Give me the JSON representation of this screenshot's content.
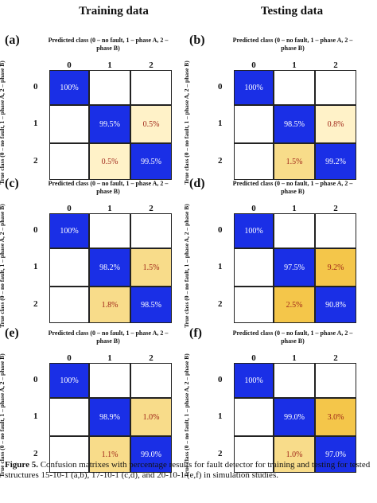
{
  "column_titles": {
    "left": "Training data",
    "right": "Testing data"
  },
  "pred_label": "Predicted class (0 – no fault, 1 – phase A, 2 – phase B)",
  "true_label": "True class (0 – no fault, 1 – phase A, 2 – phase B)",
  "class_labels": [
    "0",
    "1",
    "2"
  ],
  "colors": {
    "diag": "#1a2fe6",
    "off_low": "#fff2c8",
    "off_mid": "#f8dc8a",
    "off_high": "#f4c64a",
    "blank": "#ffffff",
    "diag_text": "#ffffff",
    "off_text": "#a0281a"
  },
  "chart_data": [
    {
      "type": "heatmap",
      "id": "a",
      "panel_label": "(a)",
      "dataset": "Training data",
      "classes": [
        "0",
        "1",
        "2"
      ],
      "matrix": [
        [
          "100%",
          "",
          ""
        ],
        [
          "",
          "99.5%",
          "0.5%"
        ],
        [
          "",
          "0.5%",
          "99.5%"
        ]
      ]
    },
    {
      "type": "heatmap",
      "id": "b",
      "panel_label": "(b)",
      "dataset": "Testing data",
      "classes": [
        "0",
        "1",
        "2"
      ],
      "matrix": [
        [
          "100%",
          "",
          ""
        ],
        [
          "",
          "98.5%",
          "0.8%"
        ],
        [
          "",
          "1.5%",
          "99.2%"
        ]
      ]
    },
    {
      "type": "heatmap",
      "id": "c",
      "panel_label": "(c)",
      "dataset": "Training data",
      "classes": [
        "0",
        "1",
        "2"
      ],
      "matrix": [
        [
          "100%",
          "",
          ""
        ],
        [
          "",
          "98.2%",
          "1.5%"
        ],
        [
          "",
          "1.8%",
          "98.5%"
        ]
      ]
    },
    {
      "type": "heatmap",
      "id": "d",
      "panel_label": "(d)",
      "dataset": "Testing data",
      "classes": [
        "0",
        "1",
        "2"
      ],
      "matrix": [
        [
          "100%",
          "",
          ""
        ],
        [
          "",
          "97.5%",
          "9.2%"
        ],
        [
          "",
          "2.5%",
          "90.8%"
        ]
      ]
    },
    {
      "type": "heatmap",
      "id": "e",
      "panel_label": "(e)",
      "dataset": "Training data",
      "classes": [
        "0",
        "1",
        "2"
      ],
      "matrix": [
        [
          "100%",
          "",
          ""
        ],
        [
          "",
          "98.9%",
          "1.0%"
        ],
        [
          "",
          "1.1%",
          "99.0%"
        ]
      ]
    },
    {
      "type": "heatmap",
      "id": "f",
      "panel_label": "(f)",
      "dataset": "Testing data",
      "classes": [
        "0",
        "1",
        "2"
      ],
      "matrix": [
        [
          "100%",
          "",
          ""
        ],
        [
          "",
          "99.0%",
          "3.0%"
        ],
        [
          "",
          "1.0%",
          "97.0%"
        ]
      ]
    }
  ],
  "caption": {
    "label": "Figure 5.",
    "text": "Confusion matrixes with percentage results for fault detector for training and testing for tested structures 15-10-1 (a,b), 17-10-1 (c,d), and 20-10-1 (e,f) in simulation studies."
  }
}
